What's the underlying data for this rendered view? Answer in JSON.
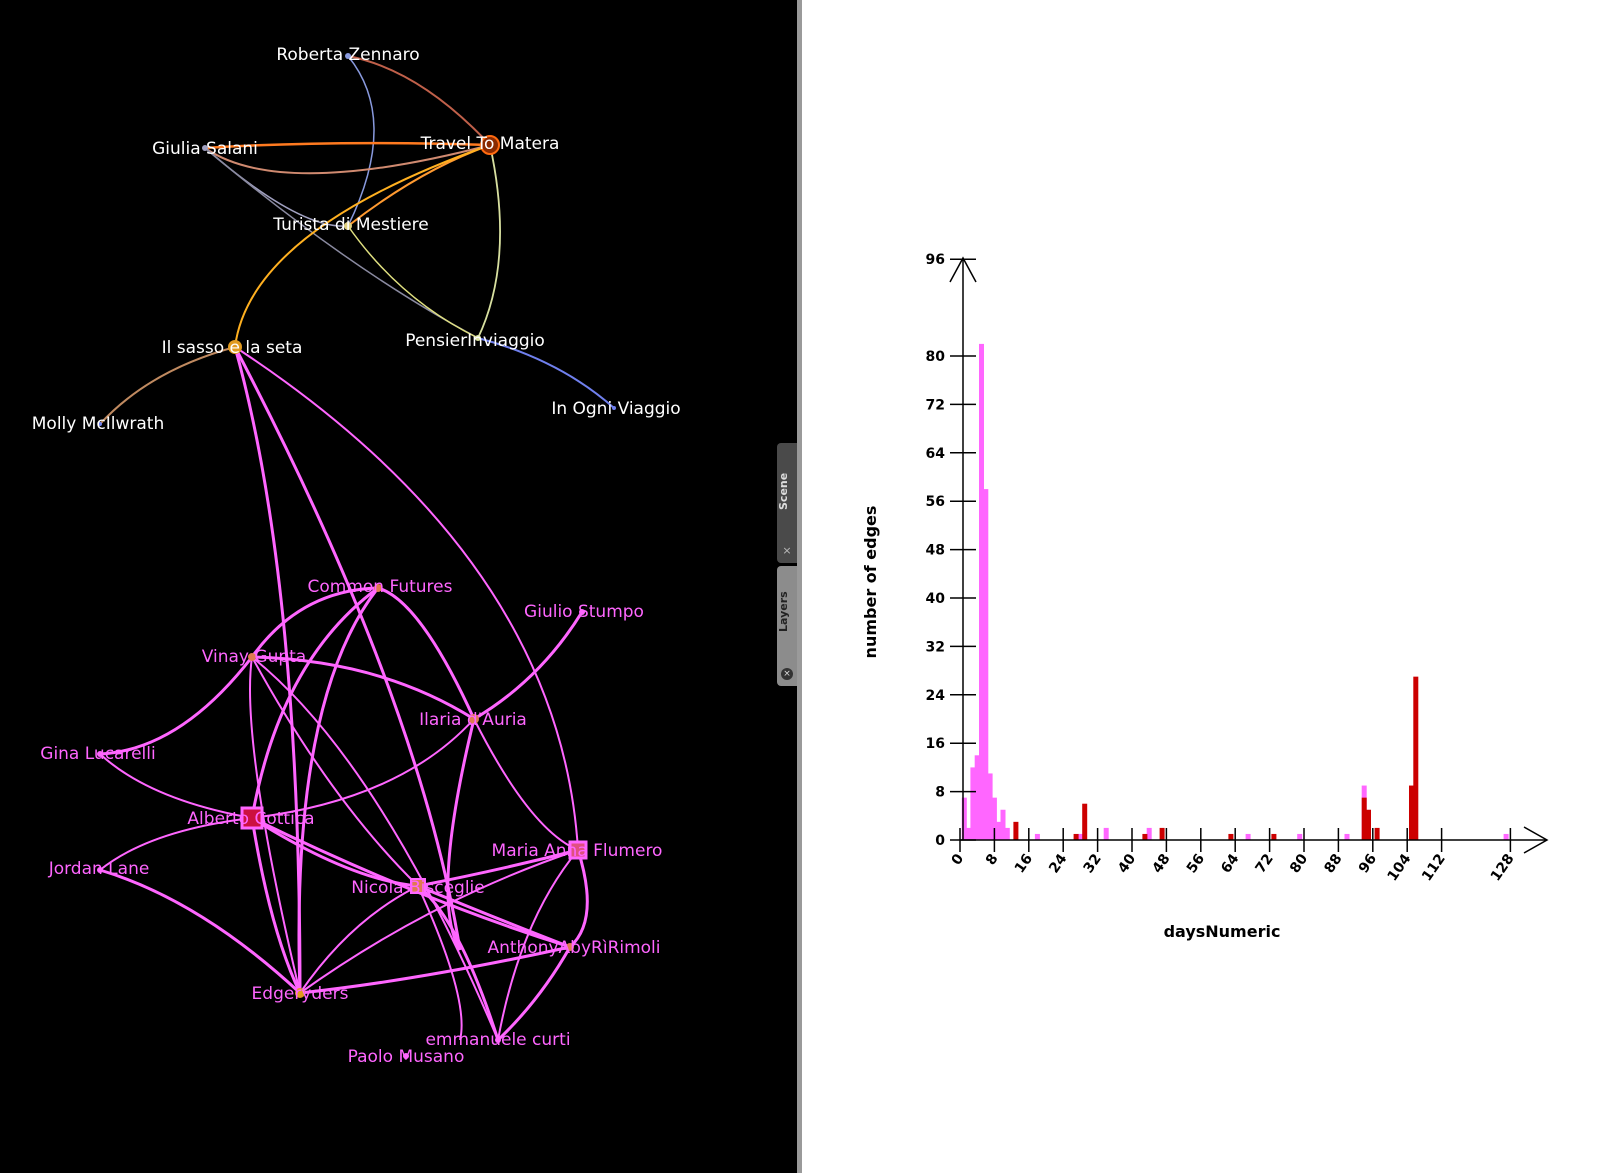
{
  "side_tabs": {
    "scene_label": "Scene",
    "layers_label": "Layers",
    "close_symbol": "×"
  },
  "graph": {
    "colors": {
      "background": "#000000",
      "community_b": "#ff66ff",
      "label_a": "#ffffff"
    },
    "nodes_a": [
      {
        "id": "roberta",
        "label": "Roberta Zennaro"
      },
      {
        "id": "travel",
        "label": "Travel To Matera"
      },
      {
        "id": "giulia",
        "label": "Giulia Salani"
      },
      {
        "id": "turista",
        "label": "Turista di Mestiere"
      },
      {
        "id": "sasso",
        "label": "Il sasso e la seta"
      },
      {
        "id": "pensier",
        "label": "PensierInviaggio"
      },
      {
        "id": "molly",
        "label": "Molly McIlwrath"
      },
      {
        "id": "ogni",
        "label": "In Ogni Viaggio"
      }
    ],
    "nodes_b": [
      {
        "id": "common",
        "label": "Common Futures"
      },
      {
        "id": "stumpo",
        "label": "Giulio Stumpo"
      },
      {
        "id": "vinay",
        "label": "Vinay Gupta"
      },
      {
        "id": "ilaria",
        "label": "Ilaria d'Auria"
      },
      {
        "id": "gina",
        "label": "Gina Lucarelli"
      },
      {
        "id": "alberto",
        "label": "Alberto Cottica"
      },
      {
        "id": "maria",
        "label": "Maria Anna Flumero"
      },
      {
        "id": "jordan",
        "label": "Jordan Lane"
      },
      {
        "id": "nicola",
        "label": "Nicola Bisceglie"
      },
      {
        "id": "anthony",
        "label": "AnthonyAbyRìRimoli"
      },
      {
        "id": "edgeryders",
        "label": "Edgeryders"
      },
      {
        "id": "curti",
        "label": "emmanuele curti"
      },
      {
        "id": "musano",
        "label": "Paolo Musano"
      }
    ]
  },
  "chart_data": {
    "type": "bar",
    "xlabel": "daysNumeric",
    "ylabel": "number of edges",
    "xticks": [
      0,
      8,
      16,
      24,
      32,
      40,
      48,
      56,
      64,
      72,
      80,
      88,
      96,
      104,
      112,
      128
    ],
    "yticks": [
      0,
      8,
      16,
      24,
      32,
      40,
      48,
      56,
      64,
      72,
      80,
      96
    ],
    "series": [
      {
        "color": "#ff66ff",
        "points": [
          [
            1,
            7
          ],
          [
            2,
            2
          ],
          [
            3,
            12
          ],
          [
            4,
            14
          ],
          [
            5,
            82
          ],
          [
            6,
            58
          ],
          [
            7,
            11
          ],
          [
            8,
            7
          ],
          [
            9,
            3
          ],
          [
            10,
            5
          ],
          [
            11,
            2
          ],
          [
            18,
            1
          ],
          [
            28,
            1
          ],
          [
            34,
            2
          ],
          [
            44,
            2
          ],
          [
            67,
            1
          ],
          [
            79,
            1
          ],
          [
            90,
            1
          ],
          [
            94,
            9
          ],
          [
            127,
            1
          ]
        ]
      },
      {
        "color": "#cc0000",
        "points": [
          [
            13,
            3
          ],
          [
            27,
            1
          ],
          [
            29,
            6
          ],
          [
            43,
            1
          ],
          [
            47,
            2
          ],
          [
            63,
            1
          ],
          [
            73,
            1
          ],
          [
            94,
            7
          ],
          [
            95,
            5
          ],
          [
            97,
            2
          ],
          [
            105,
            9
          ],
          [
            106,
            27
          ]
        ]
      }
    ]
  }
}
